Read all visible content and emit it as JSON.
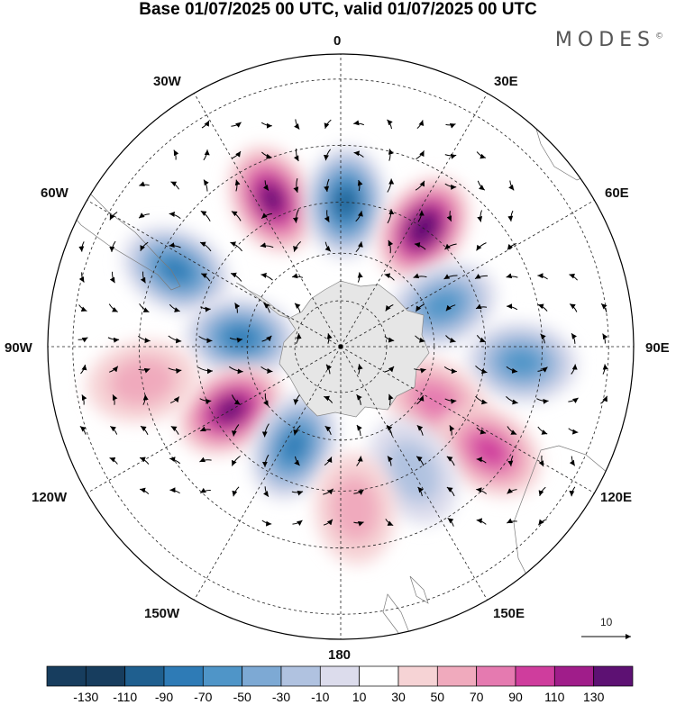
{
  "title": "Base 01/07/2025 00 UTC, valid 01/07/2025 00 UTC",
  "brand": "MODES",
  "brand_mark": "©",
  "longitude_labels": {
    "lon_0": "0",
    "lon_30e": "30E",
    "lon_60e": "60E",
    "lon_90e": "90E",
    "lon_120e": "120E",
    "lon_150e": "150E",
    "lon_180": "180",
    "lon_150w": "150W",
    "lon_120w": "120W",
    "lon_90w": "90W",
    "lon_60w": "60W",
    "lon_30w": "30W"
  },
  "reference_vector": {
    "label": "10"
  },
  "colorbar": {
    "ticks": [
      "-130",
      "-110",
      "-90",
      "-70",
      "-50",
      "-30",
      "-10",
      "10",
      "30",
      "50",
      "70",
      "90",
      "110",
      "130"
    ],
    "colors": [
      "#173d5e",
      "#1f5f8f",
      "#2e7bb6",
      "#4f95c8",
      "#7da9d4",
      "#b0c2e0",
      "#dcdcec",
      "#ffffff",
      "#f6d3d5",
      "#f0aabd",
      "#e57ab0",
      "#cf3d9d",
      "#a01d8a",
      "#5d1173"
    ]
  },
  "map": {
    "projection": "south-polar-stereographic",
    "land_color": "#e6e6e6",
    "anomaly_centers": [
      {
        "lon": -25,
        "lat": -40,
        "value": 115
      },
      {
        "lon": 2,
        "lat": -45,
        "value": -125
      },
      {
        "lon": 35,
        "lat": -45,
        "value": 130
      },
      {
        "lon": -65,
        "lat": -35,
        "value": -90
      },
      {
        "lon": 68,
        "lat": -55,
        "value": -75
      },
      {
        "lon": 95,
        "lat": -35,
        "value": -70
      },
      {
        "lon": -85,
        "lat": -58,
        "value": -95
      },
      {
        "lon": -120,
        "lat": -50,
        "value": 125
      },
      {
        "lon": -155,
        "lat": -55,
        "value": -95
      },
      {
        "lon": 120,
        "lat": -55,
        "value": 60
      },
      {
        "lon": 125,
        "lat": -35,
        "value": 70
      },
      {
        "lon": 150,
        "lat": -45,
        "value": -45
      },
      {
        "lon": 175,
        "lat": -40,
        "value": 35
      },
      {
        "lon": -100,
        "lat": -30,
        "value": 40
      }
    ]
  }
}
